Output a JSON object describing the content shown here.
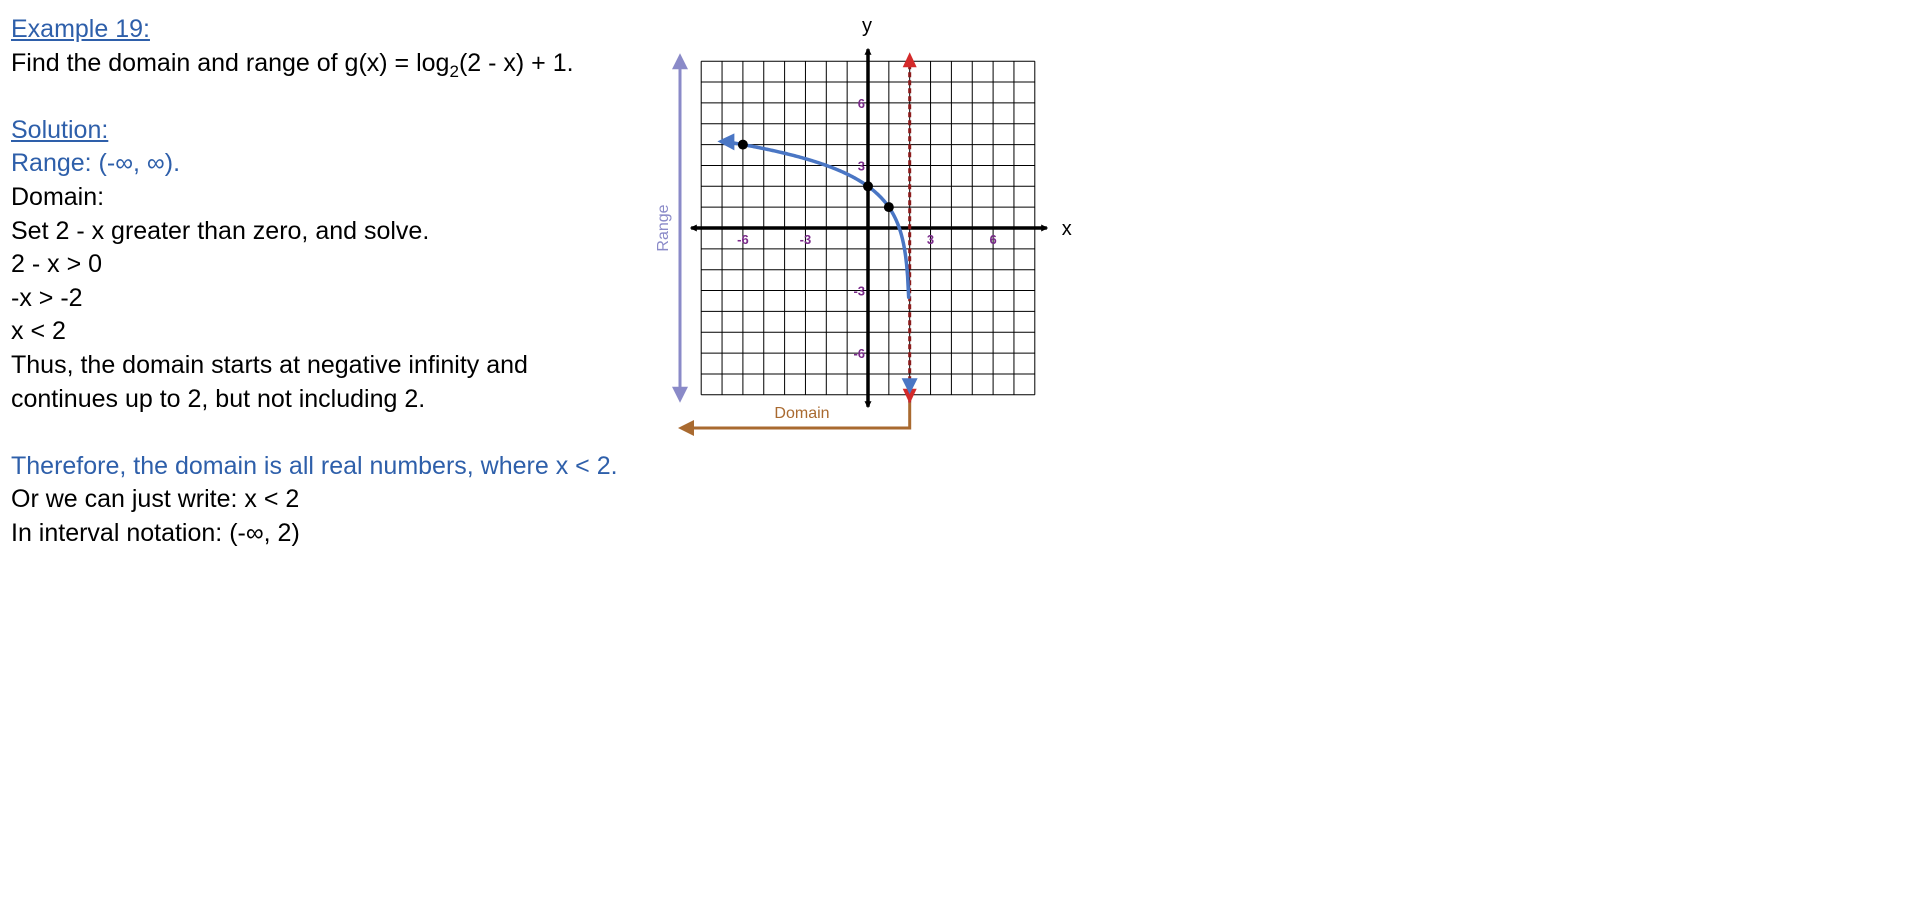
{
  "colors": {
    "heading_blue": "#2e5faa",
    "curve_blue": "#4a76c4",
    "range_arrow": "#8a8ac8",
    "domain_arrow": "#a96a30",
    "asymptote": "#8b1a1a",
    "tick_purple": "#7a2a8a"
  },
  "text": {
    "example_title": "Example 19:",
    "problem_before": "Find the domain and range of g(x) = log",
    "problem_sub": "2",
    "problem_after": "(2 - x) + 1.",
    "solution_label": "Solution:",
    "range_line": "Range:  (-∞, ∞).",
    "domain_label": "Domain:",
    "step_set": "Set 2 - x  greater than zero, and solve.",
    "step_1": "2 - x > 0",
    "step_2": "-x > -2",
    "step_3": "x < 2",
    "thus_1": "Thus, the domain starts at negative infinity and",
    "thus_2": "continues up to 2, but not including 2.",
    "therefore": "Therefore, the domain is all real numbers, where x < 2.",
    "or_write": "Or we can just write:  x < 2",
    "interval": "In interval notation:  (-∞, 2)"
  },
  "graph": {
    "x_axis_label": "x",
    "y_axis_label": "y",
    "range_label": "Range",
    "domain_label": "Domain",
    "x_ticks": [
      {
        "value": -6,
        "label": "-6"
      },
      {
        "value": -3,
        "label": "-3"
      },
      {
        "value": 3,
        "label": "3"
      },
      {
        "value": 6,
        "label": "6"
      }
    ],
    "y_ticks": [
      {
        "value": 6,
        "label": "6"
      },
      {
        "value": 3,
        "label": "3"
      },
      {
        "value": -3,
        "label": "-3"
      },
      {
        "value": -6,
        "label": "-6"
      }
    ],
    "asymptote_x": 2,
    "points": [
      {
        "x": -6,
        "y": 4
      },
      {
        "x": 0,
        "y": 2
      },
      {
        "x": 1,
        "y": 1
      }
    ]
  }
}
